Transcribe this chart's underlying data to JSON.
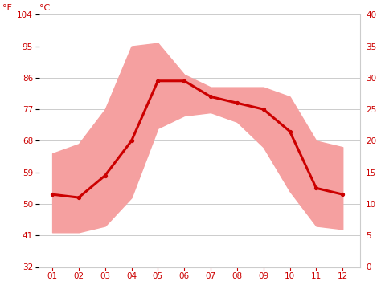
{
  "months": [
    1,
    2,
    3,
    4,
    5,
    6,
    7,
    8,
    9,
    10,
    11,
    12
  ],
  "month_labels": [
    "01",
    "02",
    "03",
    "04",
    "05",
    "06",
    "07",
    "08",
    "09",
    "10",
    "11",
    "12"
  ],
  "mean_temp_c": [
    11.5,
    11.0,
    14.5,
    20.0,
    29.5,
    29.5,
    27.0,
    26.0,
    25.0,
    21.5,
    12.5,
    11.5
  ],
  "max_temp_c": [
    18.0,
    19.5,
    25.0,
    35.0,
    35.5,
    30.5,
    28.5,
    28.5,
    28.5,
    27.0,
    20.0,
    19.0
  ],
  "min_temp_c": [
    5.5,
    5.5,
    6.5,
    11.0,
    22.0,
    24.0,
    24.5,
    23.0,
    19.0,
    12.0,
    6.5,
    6.0
  ],
  "line_color": "#cc0000",
  "fill_color": "#f5a0a0",
  "bg_color": "#ffffff",
  "grid_color": "#cccccc",
  "tick_color": "#cc0000",
  "yticks_c": [
    0,
    5,
    10,
    15,
    20,
    25,
    30,
    35,
    40
  ],
  "yticks_f": [
    32,
    41,
    50,
    59,
    68,
    77,
    86,
    95,
    104
  ],
  "label_f": "°F",
  "label_c": "°C",
  "tick_fontsize": 7.5,
  "label_fontsize": 8
}
